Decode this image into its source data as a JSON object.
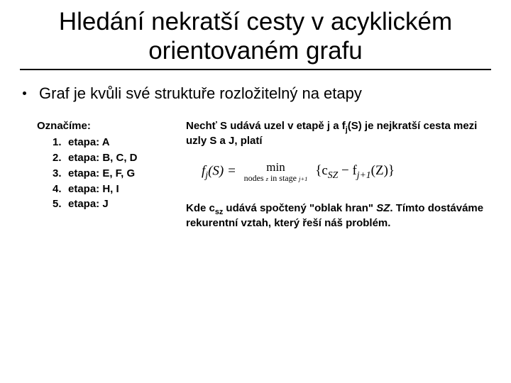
{
  "title_line1": "Hledání nekratší cesty v acyklickém",
  "title_line2": "orientovaném grafu",
  "bullet": "Graf je kvůli své struktuře rozložitelný na etapy",
  "left": {
    "heading": "Označíme:",
    "items": [
      {
        "num": "1.",
        "txt": "etapa: A"
      },
      {
        "num": "2.",
        "txt": "etapa: B, C, D"
      },
      {
        "num": "3.",
        "txt": "etapa: E, F, G"
      },
      {
        "num": "4.",
        "txt": "etapa: H, I"
      },
      {
        "num": "5.",
        "txt": "etapa: J"
      }
    ]
  },
  "right": {
    "p1_a": "Nechť S udává uzel v etapě j a f",
    "p1_sub1": "j",
    "p1_b": "(S) je nejkratší cesta mezi uzly S a J, platí",
    "formula_lhs_a": "f",
    "formula_lhs_sub": "j",
    "formula_lhs_b": "(S) = ",
    "formula_min": "min",
    "formula_min_under_a": "nodes ",
    "formula_min_under_z": "z",
    "formula_min_under_b": " in stage ",
    "formula_min_under_c": "j+1",
    "formula_rhs_a": "{c",
    "formula_rhs_sub1": "SZ",
    "formula_rhs_b": " − f",
    "formula_rhs_sub2": "j+1",
    "formula_rhs_c": "(Z)}",
    "p2_a": "Kde c",
    "p2_sub": "sz",
    "p2_b": "  udává spočtený \"oblak hran\" ",
    "p2_ital": "SZ",
    "p2_c": ". Tímto dostáváme rekurentní vztah, který řeší náš problém."
  }
}
